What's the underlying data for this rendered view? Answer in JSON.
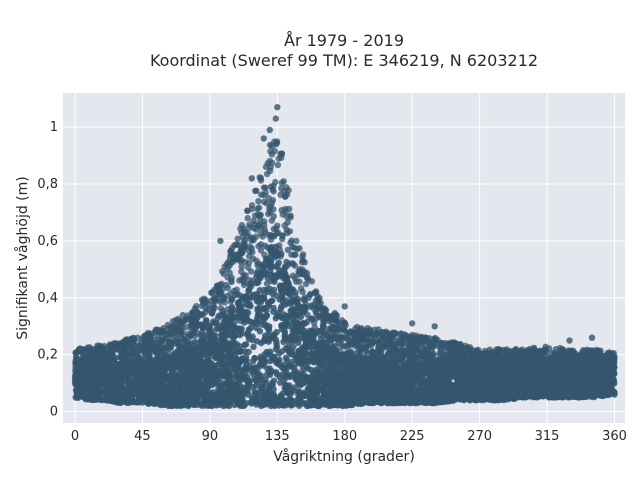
{
  "chart_data": {
    "type": "scatter",
    "title_lines": [
      "År 1979 - 2019",
      "Koordinat (Sweref 99 TM): E 346219, N 6203212"
    ],
    "xlabel": "Vågriktning (grader)",
    "ylabel": "Signifikant våghöjd (m)",
    "xlim": [
      -8,
      367
    ],
    "ylim": [
      -0.04,
      1.12
    ],
    "x_ticks": [
      0,
      45,
      90,
      135,
      180,
      225,
      270,
      315,
      360
    ],
    "x_tick_labels": [
      "0",
      "45",
      "90",
      "135",
      "180",
      "225",
      "270",
      "315",
      "360"
    ],
    "y_ticks": [
      0,
      0.2,
      0.4,
      0.6,
      0.8,
      1
    ],
    "y_tick_labels": [
      "0",
      "0,2",
      "0,4",
      "0,6",
      "0,8",
      "1"
    ],
    "grid": true,
    "point_color": "#34566d",
    "background_color": "#e5e7ef",
    "envelope": {
      "description_free": true,
      "x": [
        0,
        10,
        20,
        30,
        45,
        60,
        75,
        90,
        100,
        110,
        120,
        128,
        133,
        138,
        145,
        155,
        165,
        180,
        195,
        210,
        225,
        240,
        255,
        270,
        285,
        300,
        315,
        330,
        345,
        360
      ],
      "y_max": [
        0.22,
        0.23,
        0.24,
        0.25,
        0.27,
        0.3,
        0.35,
        0.42,
        0.52,
        0.64,
        0.78,
        0.9,
        1.02,
        0.92,
        0.7,
        0.5,
        0.38,
        0.32,
        0.3,
        0.28,
        0.27,
        0.26,
        0.24,
        0.22,
        0.22,
        0.22,
        0.23,
        0.22,
        0.22,
        0.21
      ],
      "y_min": [
        0.05,
        0.04,
        0.04,
        0.03,
        0.03,
        0.02,
        0.02,
        0.02,
        0.02,
        0.02,
        0.02,
        0.02,
        0.02,
        0.02,
        0.02,
        0.02,
        0.02,
        0.02,
        0.03,
        0.03,
        0.03,
        0.03,
        0.04,
        0.04,
        0.04,
        0.05,
        0.05,
        0.05,
        0.05,
        0.06
      ]
    },
    "notable_points": [
      {
        "x": 135,
        "y": 1.07
      },
      {
        "x": 134,
        "y": 1.03
      },
      {
        "x": 130,
        "y": 0.99
      },
      {
        "x": 126,
        "y": 0.96
      },
      {
        "x": 118,
        "y": 0.82
      },
      {
        "x": 97,
        "y": 0.6
      },
      {
        "x": 180,
        "y": 0.37
      },
      {
        "x": 240,
        "y": 0.3
      },
      {
        "x": 225,
        "y": 0.31
      },
      {
        "x": 345,
        "y": 0.26
      },
      {
        "x": 330,
        "y": 0.25
      }
    ]
  }
}
